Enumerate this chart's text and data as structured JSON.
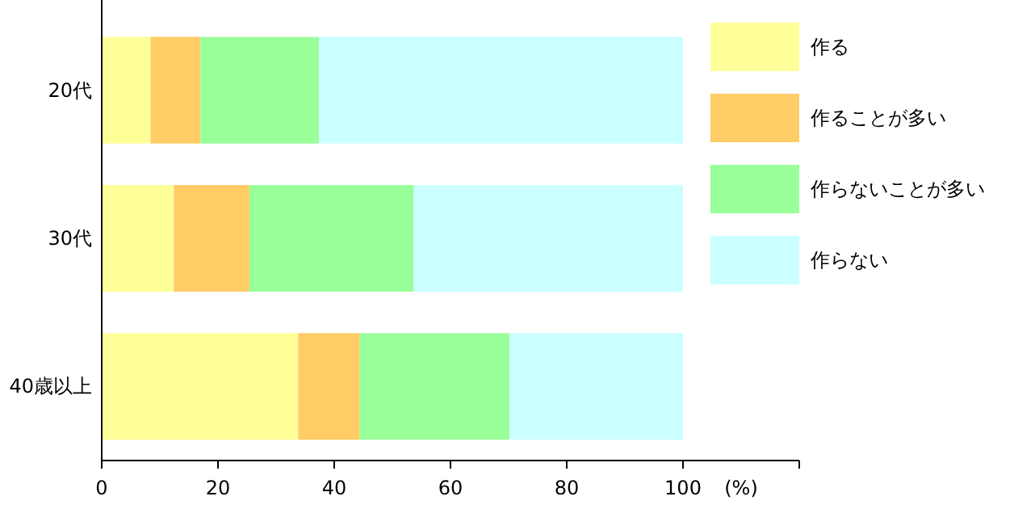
{
  "chart_data": {
    "type": "bar",
    "orientation": "horizontal",
    "stacked": true,
    "categories": [
      "20代",
      "30代",
      "40歳以上"
    ],
    "series": [
      {
        "name": "作る",
        "color": "#ffff99",
        "values": [
          8.4,
          12.4,
          33.8
        ]
      },
      {
        "name": "作ることが多い",
        "color": "#ffcc66",
        "values": [
          8.6,
          13.0,
          10.6
        ]
      },
      {
        "name": "作らないことが多い",
        "color": "#99ff99",
        "values": [
          20.4,
          28.3,
          25.8
        ]
      },
      {
        "name": "作らない",
        "color": "#ccffff",
        "values": [
          62.6,
          46.3,
          29.8
        ]
      }
    ],
    "xlim": [
      0,
      120
    ],
    "xticks": [
      0,
      20,
      40,
      60,
      80,
      100,
      {
        "value": 120,
        "label": null
      }
    ],
    "xlabel": "(%)",
    "legend": "top right",
    "grid": false
  }
}
